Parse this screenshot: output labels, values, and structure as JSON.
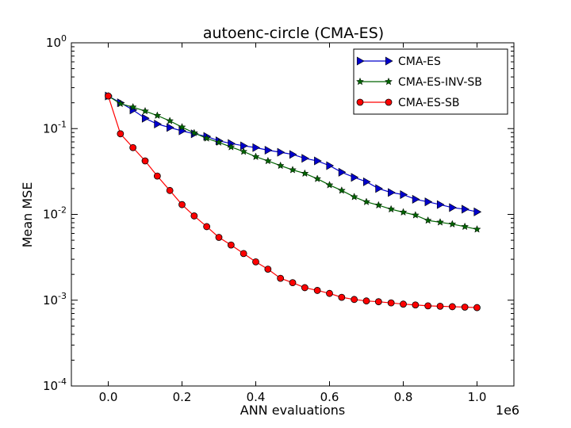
{
  "chart_data": {
    "type": "line",
    "title": "autoenc-circle (CMA-ES)",
    "xlabel": "ANN evaluations",
    "ylabel": "Mean MSE",
    "x_offset_label": "1e6",
    "xlim": [
      -0.1,
      1.1
    ],
    "ylim": [
      0.0001,
      1
    ],
    "yscale": "log",
    "x_ticks": [
      "0.0",
      "0.2",
      "0.4",
      "0.6",
      "0.8",
      "1.0"
    ],
    "x_tick_values": [
      0.0,
      0.2,
      0.4,
      0.6,
      0.8,
      1.0
    ],
    "y_ticks": [
      {
        "value": 1,
        "base": "10",
        "exp": "0"
      },
      {
        "value": 0.1,
        "base": "10",
        "exp": "-1"
      },
      {
        "value": 0.01,
        "base": "10",
        "exp": "-2"
      },
      {
        "value": 0.001,
        "base": "10",
        "exp": "-3"
      },
      {
        "value": 0.0001,
        "base": "10",
        "exp": "-4"
      }
    ],
    "grid": false,
    "legend_position": "top-right",
    "x": [
      0.0,
      0.033,
      0.067,
      0.1,
      0.133,
      0.167,
      0.2,
      0.233,
      0.267,
      0.3,
      0.333,
      0.367,
      0.4,
      0.433,
      0.467,
      0.5,
      0.533,
      0.567,
      0.6,
      0.633,
      0.667,
      0.7,
      0.733,
      0.767,
      0.8,
      0.833,
      0.867,
      0.9,
      0.933,
      0.967,
      1.0
    ],
    "series": [
      {
        "name": "CMA-ES",
        "color": "#0000cc",
        "marker": "triangle-right",
        "values": [
          0.24,
          0.2,
          0.165,
          0.132,
          0.113,
          0.103,
          0.094,
          0.087,
          0.081,
          0.072,
          0.067,
          0.063,
          0.06,
          0.056,
          0.053,
          0.05,
          0.045,
          0.042,
          0.037,
          0.031,
          0.027,
          0.024,
          0.02,
          0.018,
          0.017,
          0.015,
          0.014,
          0.013,
          0.012,
          0.0115,
          0.0107
        ]
      },
      {
        "name": "CMA-ES-INV-SB",
        "color": "#006400",
        "marker": "star",
        "values": [
          0.24,
          0.195,
          0.178,
          0.16,
          0.142,
          0.123,
          0.104,
          0.089,
          0.077,
          0.069,
          0.061,
          0.054,
          0.047,
          0.042,
          0.037,
          0.033,
          0.03,
          0.026,
          0.022,
          0.019,
          0.016,
          0.014,
          0.0128,
          0.0115,
          0.0106,
          0.0098,
          0.0085,
          0.0081,
          0.0077,
          0.0072,
          0.0067
        ]
      },
      {
        "name": "CMA-ES-SB",
        "color": "#ff0000",
        "marker": "circle",
        "values": [
          0.24,
          0.087,
          0.06,
          0.042,
          0.028,
          0.019,
          0.013,
          0.0096,
          0.0072,
          0.0054,
          0.0044,
          0.0035,
          0.0028,
          0.0023,
          0.0018,
          0.0016,
          0.0014,
          0.0013,
          0.0012,
          0.00108,
          0.00102,
          0.00098,
          0.00096,
          0.00093,
          0.0009,
          0.00088,
          0.00086,
          0.00085,
          0.00084,
          0.00083,
          0.00082
        ]
      }
    ]
  }
}
